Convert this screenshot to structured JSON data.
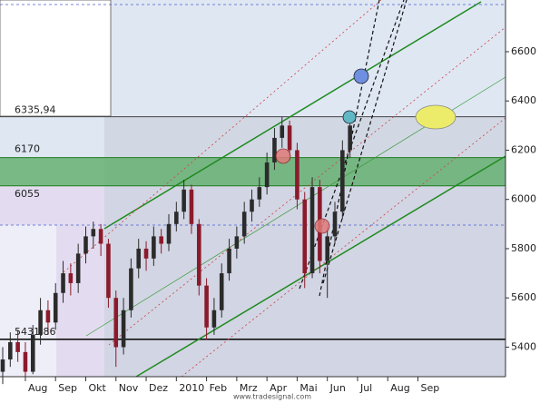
{
  "chart_data": {
    "type": "candlestick",
    "xlim": [
      0.16,
      16.9
    ],
    "ylim": [
      5280,
      6810
    ],
    "yticks": [
      5400,
      5600,
      5800,
      6000,
      6200,
      6400,
      6600
    ],
    "xticks": [
      {
        "value": 1,
        "label": "Aug"
      },
      {
        "value": 2,
        "label": "Sep"
      },
      {
        "value": 3,
        "label": "Okt"
      },
      {
        "value": 4,
        "label": "Nov"
      },
      {
        "value": 5,
        "label": "Dez"
      },
      {
        "value": 6,
        "label": "2010"
      },
      {
        "value": 7,
        "label": "Feb"
      },
      {
        "value": 8,
        "label": "Mrz"
      },
      {
        "value": 9,
        "label": "Apr"
      },
      {
        "value": 10,
        "label": "Mai"
      },
      {
        "value": 11,
        "label": "Jun"
      },
      {
        "value": 12,
        "label": "Jul"
      },
      {
        "value": 13,
        "label": "Aug"
      },
      {
        "value": 14,
        "label": "Sep"
      }
    ],
    "up_color": "#2b2b2b",
    "down_color": "#8b1a2b",
    "x": [
      0.25,
      0.5,
      0.75,
      1,
      1.25,
      1.5,
      1.75,
      2,
      2.25,
      2.5,
      2.75,
      3,
      3.25,
      3.5,
      3.75,
      4,
      4.25,
      4.5,
      4.75,
      5,
      5.25,
      5.5,
      5.75,
      6,
      6.25,
      6.5,
      6.75,
      7,
      7.25,
      7.5,
      7.75,
      8,
      8.25,
      8.5,
      8.75,
      9,
      9.25,
      9.5,
      9.75,
      10,
      10.25,
      10.5,
      10.75,
      11,
      11.25,
      11.5,
      11.75
    ],
    "open": [
      5300,
      5350,
      5420,
      5380,
      5300,
      5450,
      5550,
      5500,
      5620,
      5700,
      5660,
      5780,
      5850,
      5880,
      5820,
      5600,
      5400,
      5550,
      5720,
      5800,
      5760,
      5850,
      5820,
      5900,
      5950,
      6040,
      5900,
      5650,
      5480,
      5550,
      5700,
      5800,
      5850,
      5950,
      6000,
      6050,
      6150,
      6250,
      6300,
      6200,
      6000,
      5700,
      6050,
      5750,
      5850,
      5950,
      6200
    ],
    "high": [
      5400,
      5460,
      5470,
      5420,
      5490,
      5600,
      5590,
      5660,
      5750,
      5740,
      5820,
      5890,
      5910,
      5900,
      5840,
      5630,
      5600,
      5760,
      5840,
      5830,
      5890,
      5880,
      5940,
      5990,
      6080,
      6060,
      5920,
      5680,
      5600,
      5740,
      5840,
      5890,
      5990,
      6040,
      6090,
      6190,
      6290,
      6336,
      6320,
      6230,
      6030,
      6090,
      6080,
      5890,
      5990,
      6240,
      6330
    ],
    "low": [
      5250,
      5320,
      5340,
      5280,
      5290,
      5410,
      5450,
      5470,
      5580,
      5610,
      5620,
      5740,
      5800,
      5770,
      5560,
      5320,
      5370,
      5520,
      5680,
      5710,
      5730,
      5780,
      5790,
      5870,
      5920,
      5860,
      5610,
      5430,
      5450,
      5520,
      5670,
      5760,
      5820,
      5910,
      5970,
      6020,
      6120,
      6210,
      6160,
      5960,
      5640,
      5680,
      5700,
      5600,
      5820,
      5920,
      6170
    ],
    "close": [
      5350,
      5420,
      5380,
      5300,
      5450,
      5550,
      5500,
      5620,
      5700,
      5660,
      5780,
      5850,
      5880,
      5820,
      5600,
      5400,
      5550,
      5720,
      5800,
      5760,
      5850,
      5820,
      5900,
      5950,
      6040,
      5900,
      5650,
      5480,
      5550,
      5700,
      5800,
      5850,
      5950,
      6000,
      6050,
      6150,
      6250,
      6300,
      6200,
      6000,
      5700,
      6050,
      5750,
      5850,
      5950,
      6200,
      6300
    ],
    "levels": [
      {
        "value": 6335.94,
        "label": "6335,94",
        "color": "#444444"
      },
      {
        "value": 6170,
        "label": "6170",
        "color": "#1f7a1f"
      },
      {
        "value": 6055,
        "label": "6055",
        "color": "#1f7a1f"
      },
      {
        "value": 5431.86,
        "label": "5431,86",
        "color": "#111111"
      }
    ],
    "band_color": "#5fae6a",
    "watermark": "www.tradesignal.com"
  }
}
